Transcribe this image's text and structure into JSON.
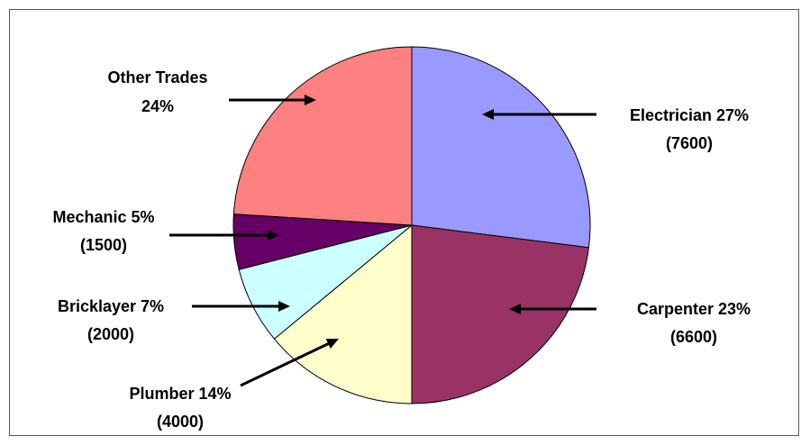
{
  "chart_data": {
    "type": "pie",
    "title": "",
    "start_angle_deg": 0,
    "direction": "clockwise",
    "slices": [
      {
        "name": "Electrician",
        "percent": 27,
        "value": 7600,
        "pct_label": "Electrician 27%",
        "value_label": "(7600)",
        "color": "#9999FF"
      },
      {
        "name": "Carpenter",
        "percent": 23,
        "value": 6600,
        "pct_label": "Carpenter 23%",
        "value_label": "(6600)",
        "color": "#993366"
      },
      {
        "name": "Plumber",
        "percent": 14,
        "value": 4000,
        "pct_label": "Plumber 14%",
        "value_label": "(4000)",
        "color": "#FFFFCC"
      },
      {
        "name": "Bricklayer",
        "percent": 7,
        "value": 2000,
        "pct_label": "Bricklayer 7%",
        "value_label": "(2000)",
        "color": "#CCFFFF"
      },
      {
        "name": "Mechanic",
        "percent": 5,
        "value": 1500,
        "pct_label": "Mechanic 5%",
        "value_label": "(1500)",
        "color": "#660066"
      },
      {
        "name": "Other Trades",
        "percent": 24,
        "pct_label": "Other Trades",
        "value_label": "24%",
        "color": "#FF8080"
      }
    ],
    "legend": "none",
    "labels": "outside-with-arrows"
  }
}
